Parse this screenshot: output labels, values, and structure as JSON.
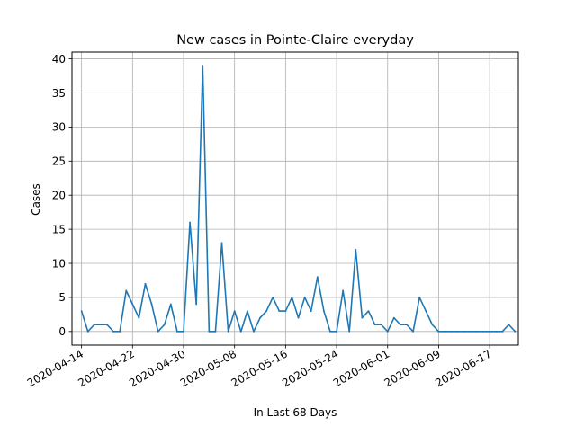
{
  "chart_data": {
    "type": "line",
    "title": "New cases in Pointe-Claire everyday",
    "xlabel": "In Last 68 Days",
    "ylabel": "Cases",
    "start_date": "2020-04-14",
    "x_ticks": [
      "2020-04-14",
      "2020-04-22",
      "2020-04-30",
      "2020-05-08",
      "2020-05-16",
      "2020-05-24",
      "2020-06-01",
      "2020-06-09",
      "2020-06-17"
    ],
    "y_ticks": [
      0,
      5,
      10,
      15,
      20,
      25,
      30,
      35,
      40
    ],
    "xlim_days": [
      -1.5,
      68.5
    ],
    "ylim": [
      -2,
      41
    ],
    "grid": true,
    "line_color": "#1f77b4",
    "series": [
      {
        "name": "",
        "values": [
          3,
          0,
          1,
          1,
          1,
          0,
          0,
          6,
          4,
          2,
          7,
          4,
          0,
          1,
          4,
          0,
          0,
          16,
          4,
          39,
          0,
          0,
          13,
          0,
          3,
          0,
          3,
          0,
          2,
          3,
          5,
          3,
          3,
          5,
          2,
          5,
          3,
          8,
          3,
          0,
          0,
          6,
          0,
          12,
          2,
          3,
          1,
          1,
          0,
          2,
          1,
          1,
          0,
          5,
          3,
          1,
          0,
          0,
          0,
          0,
          0,
          0,
          0,
          0,
          0,
          0,
          0,
          1,
          0
        ]
      }
    ]
  }
}
